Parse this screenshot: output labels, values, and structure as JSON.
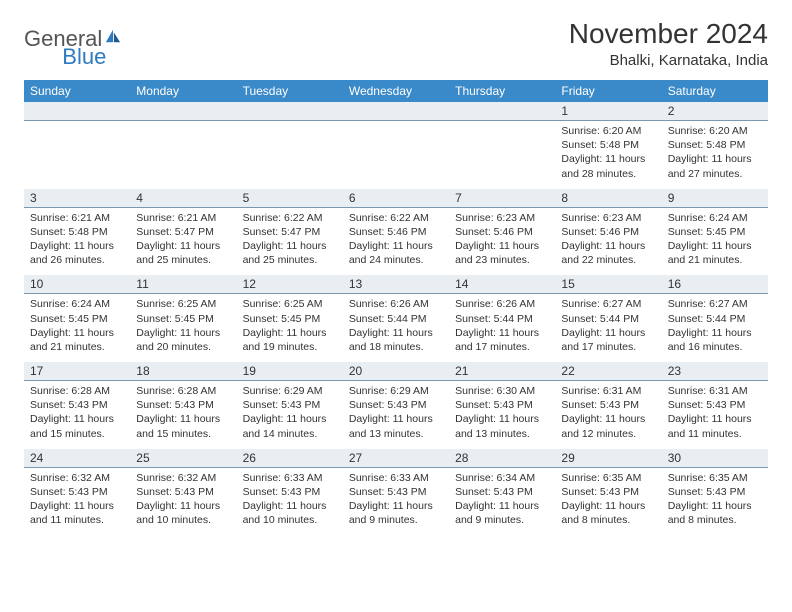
{
  "colors": {
    "header_bg": "#3a89c9",
    "header_text": "#ffffff",
    "daynum_bg": "#e9eef2",
    "daynum_border": "#7a98b0",
    "body_text": "#333333",
    "logo_gray": "#555555",
    "logo_blue": "#2f7bc0",
    "page_bg": "#ffffff"
  },
  "logo": {
    "word1": "General",
    "word2": "Blue"
  },
  "title": "November 2024",
  "location": "Bhalki, Karnataka, India",
  "day_headers": [
    "Sunday",
    "Monday",
    "Tuesday",
    "Wednesday",
    "Thursday",
    "Friday",
    "Saturday"
  ],
  "weeks": [
    [
      null,
      null,
      null,
      null,
      null,
      {
        "n": "1",
        "sr": "Sunrise: 6:20 AM",
        "ss": "Sunset: 5:48 PM",
        "dl": "Daylight: 11 hours and 28 minutes."
      },
      {
        "n": "2",
        "sr": "Sunrise: 6:20 AM",
        "ss": "Sunset: 5:48 PM",
        "dl": "Daylight: 11 hours and 27 minutes."
      }
    ],
    [
      {
        "n": "3",
        "sr": "Sunrise: 6:21 AM",
        "ss": "Sunset: 5:48 PM",
        "dl": "Daylight: 11 hours and 26 minutes."
      },
      {
        "n": "4",
        "sr": "Sunrise: 6:21 AM",
        "ss": "Sunset: 5:47 PM",
        "dl": "Daylight: 11 hours and 25 minutes."
      },
      {
        "n": "5",
        "sr": "Sunrise: 6:22 AM",
        "ss": "Sunset: 5:47 PM",
        "dl": "Daylight: 11 hours and 25 minutes."
      },
      {
        "n": "6",
        "sr": "Sunrise: 6:22 AM",
        "ss": "Sunset: 5:46 PM",
        "dl": "Daylight: 11 hours and 24 minutes."
      },
      {
        "n": "7",
        "sr": "Sunrise: 6:23 AM",
        "ss": "Sunset: 5:46 PM",
        "dl": "Daylight: 11 hours and 23 minutes."
      },
      {
        "n": "8",
        "sr": "Sunrise: 6:23 AM",
        "ss": "Sunset: 5:46 PM",
        "dl": "Daylight: 11 hours and 22 minutes."
      },
      {
        "n": "9",
        "sr": "Sunrise: 6:24 AM",
        "ss": "Sunset: 5:45 PM",
        "dl": "Daylight: 11 hours and 21 minutes."
      }
    ],
    [
      {
        "n": "10",
        "sr": "Sunrise: 6:24 AM",
        "ss": "Sunset: 5:45 PM",
        "dl": "Daylight: 11 hours and 21 minutes."
      },
      {
        "n": "11",
        "sr": "Sunrise: 6:25 AM",
        "ss": "Sunset: 5:45 PM",
        "dl": "Daylight: 11 hours and 20 minutes."
      },
      {
        "n": "12",
        "sr": "Sunrise: 6:25 AM",
        "ss": "Sunset: 5:45 PM",
        "dl": "Daylight: 11 hours and 19 minutes."
      },
      {
        "n": "13",
        "sr": "Sunrise: 6:26 AM",
        "ss": "Sunset: 5:44 PM",
        "dl": "Daylight: 11 hours and 18 minutes."
      },
      {
        "n": "14",
        "sr": "Sunrise: 6:26 AM",
        "ss": "Sunset: 5:44 PM",
        "dl": "Daylight: 11 hours and 17 minutes."
      },
      {
        "n": "15",
        "sr": "Sunrise: 6:27 AM",
        "ss": "Sunset: 5:44 PM",
        "dl": "Daylight: 11 hours and 17 minutes."
      },
      {
        "n": "16",
        "sr": "Sunrise: 6:27 AM",
        "ss": "Sunset: 5:44 PM",
        "dl": "Daylight: 11 hours and 16 minutes."
      }
    ],
    [
      {
        "n": "17",
        "sr": "Sunrise: 6:28 AM",
        "ss": "Sunset: 5:43 PM",
        "dl": "Daylight: 11 hours and 15 minutes."
      },
      {
        "n": "18",
        "sr": "Sunrise: 6:28 AM",
        "ss": "Sunset: 5:43 PM",
        "dl": "Daylight: 11 hours and 15 minutes."
      },
      {
        "n": "19",
        "sr": "Sunrise: 6:29 AM",
        "ss": "Sunset: 5:43 PM",
        "dl": "Daylight: 11 hours and 14 minutes."
      },
      {
        "n": "20",
        "sr": "Sunrise: 6:29 AM",
        "ss": "Sunset: 5:43 PM",
        "dl": "Daylight: 11 hours and 13 minutes."
      },
      {
        "n": "21",
        "sr": "Sunrise: 6:30 AM",
        "ss": "Sunset: 5:43 PM",
        "dl": "Daylight: 11 hours and 13 minutes."
      },
      {
        "n": "22",
        "sr": "Sunrise: 6:31 AM",
        "ss": "Sunset: 5:43 PM",
        "dl": "Daylight: 11 hours and 12 minutes."
      },
      {
        "n": "23",
        "sr": "Sunrise: 6:31 AM",
        "ss": "Sunset: 5:43 PM",
        "dl": "Daylight: 11 hours and 11 minutes."
      }
    ],
    [
      {
        "n": "24",
        "sr": "Sunrise: 6:32 AM",
        "ss": "Sunset: 5:43 PM",
        "dl": "Daylight: 11 hours and 11 minutes."
      },
      {
        "n": "25",
        "sr": "Sunrise: 6:32 AM",
        "ss": "Sunset: 5:43 PM",
        "dl": "Daylight: 11 hours and 10 minutes."
      },
      {
        "n": "26",
        "sr": "Sunrise: 6:33 AM",
        "ss": "Sunset: 5:43 PM",
        "dl": "Daylight: 11 hours and 10 minutes."
      },
      {
        "n": "27",
        "sr": "Sunrise: 6:33 AM",
        "ss": "Sunset: 5:43 PM",
        "dl": "Daylight: 11 hours and 9 minutes."
      },
      {
        "n": "28",
        "sr": "Sunrise: 6:34 AM",
        "ss": "Sunset: 5:43 PM",
        "dl": "Daylight: 11 hours and 9 minutes."
      },
      {
        "n": "29",
        "sr": "Sunrise: 6:35 AM",
        "ss": "Sunset: 5:43 PM",
        "dl": "Daylight: 11 hours and 8 minutes."
      },
      {
        "n": "30",
        "sr": "Sunrise: 6:35 AM",
        "ss": "Sunset: 5:43 PM",
        "dl": "Daylight: 11 hours and 8 minutes."
      }
    ]
  ]
}
